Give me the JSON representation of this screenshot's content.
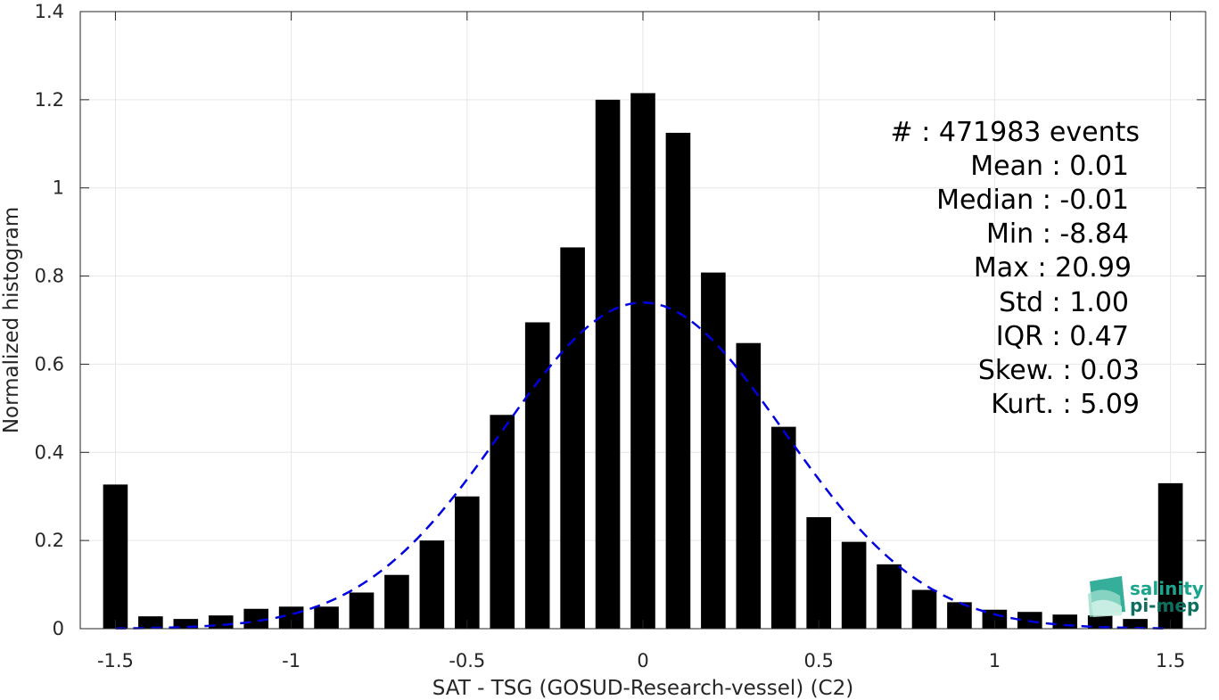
{
  "chart_data": {
    "type": "bar",
    "xlabel": "SAT - TSG (GOSUD-Research-vessel) (C2)",
    "ylabel": "Normalized histogram",
    "xlim": [
      -1.6,
      1.6
    ],
    "ylim": [
      0,
      1.4
    ],
    "grid": true,
    "bar_width": 0.07,
    "x": [
      -1.5,
      -1.4,
      -1.3,
      -1.2,
      -1.1,
      -1.0,
      -0.9,
      -0.8,
      -0.7,
      -0.6,
      -0.5,
      -0.4,
      -0.3,
      -0.2,
      -0.1,
      0.0,
      0.1,
      0.2,
      0.3,
      0.4,
      0.5,
      0.6,
      0.7,
      0.8,
      0.9,
      1.0,
      1.1,
      1.2,
      1.3,
      1.4,
      1.5
    ],
    "values": [
      0.327,
      0.028,
      0.022,
      0.03,
      0.045,
      0.05,
      0.05,
      0.082,
      0.122,
      0.2,
      0.3,
      0.485,
      0.695,
      0.865,
      1.2,
      1.215,
      1.125,
      0.808,
      0.648,
      0.458,
      0.253,
      0.197,
      0.146,
      0.088,
      0.06,
      0.043,
      0.038,
      0.032,
      0.03,
      0.022,
      0.33
    ],
    "x_ticks": [
      -1.5,
      -1,
      -0.5,
      0,
      0.5,
      1,
      1.5
    ],
    "x_tick_labels": [
      "-1.5",
      "-1",
      "-0.5",
      "0",
      "0.5",
      "1",
      "1.5"
    ],
    "y_ticks": [
      0,
      0.2,
      0.4,
      0.6,
      0.8,
      1,
      1.2,
      1.4
    ],
    "y_tick_labels": [
      "0",
      "0.2",
      "0.4",
      "0.6",
      "0.8",
      "1",
      "1.2",
      "1.4"
    ],
    "fit_curve": {
      "style": "dashed",
      "color": "#0000e0",
      "mean": 0.0,
      "peak": 0.74,
      "sigma": 0.4,
      "x_range": [
        -1.5,
        1.5
      ]
    },
    "colors": {
      "bars": "#000000",
      "fit": "#0000e0",
      "grid": "#e6e6e6",
      "axis": "#262626"
    },
    "annotations": [
      "#  : 471983 events",
      "Mean : 0.01",
      "Median : -0.01",
      "Min : -8.84",
      "Max : 20.99",
      "Std : 1.00",
      "IQR : 0.47",
      "Skew. : 0.03",
      "Kurt. : 5.09"
    ]
  },
  "logo": {
    "line1": "salinity",
    "line2": "pi-mep",
    "colors": {
      "primary": "#1aa58c",
      "dark": "#0f6f5e"
    }
  }
}
